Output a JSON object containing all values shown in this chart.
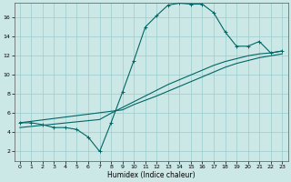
{
  "title": "",
  "xlabel": "Humidex (Indice chaleur)",
  "bg_color": "#cce8e6",
  "grid_color": "#99cccc",
  "line_color": "#006666",
  "xlim": [
    -0.5,
    23.5
  ],
  "ylim": [
    1.0,
    17.5
  ],
  "xticks": [
    0,
    1,
    2,
    3,
    4,
    5,
    6,
    7,
    8,
    9,
    10,
    11,
    12,
    13,
    14,
    15,
    16,
    17,
    18,
    19,
    20,
    21,
    22,
    23
  ],
  "yticks": [
    2,
    4,
    6,
    8,
    10,
    12,
    14,
    16
  ],
  "hours": [
    0,
    1,
    2,
    3,
    4,
    5,
    6,
    7,
    8,
    9,
    10,
    11,
    12,
    13,
    14,
    15,
    16,
    17,
    18,
    19,
    20,
    21,
    22,
    23
  ],
  "curve_main": [
    5.0,
    5.0,
    4.8,
    4.5,
    4.5,
    4.3,
    3.5,
    2.0,
    5.0,
    8.2,
    11.5,
    15.0,
    16.2,
    17.3,
    17.5,
    17.4,
    17.4,
    16.5,
    14.5,
    13.0,
    13.0,
    13.5,
    12.3,
    12.5
  ],
  "curve_line1": [
    5.0,
    5.15,
    5.3,
    5.45,
    5.6,
    5.75,
    5.9,
    6.05,
    6.2,
    6.35,
    6.9,
    7.35,
    7.8,
    8.3,
    8.8,
    9.3,
    9.8,
    10.3,
    10.8,
    11.2,
    11.5,
    11.8,
    12.0,
    12.2
  ],
  "curve_line2": [
    4.5,
    4.62,
    4.74,
    4.86,
    4.98,
    5.1,
    5.22,
    5.34,
    6.0,
    6.6,
    7.2,
    7.8,
    8.4,
    9.0,
    9.5,
    10.0,
    10.5,
    11.0,
    11.4,
    11.7,
    12.0,
    12.2,
    12.3,
    12.5
  ]
}
